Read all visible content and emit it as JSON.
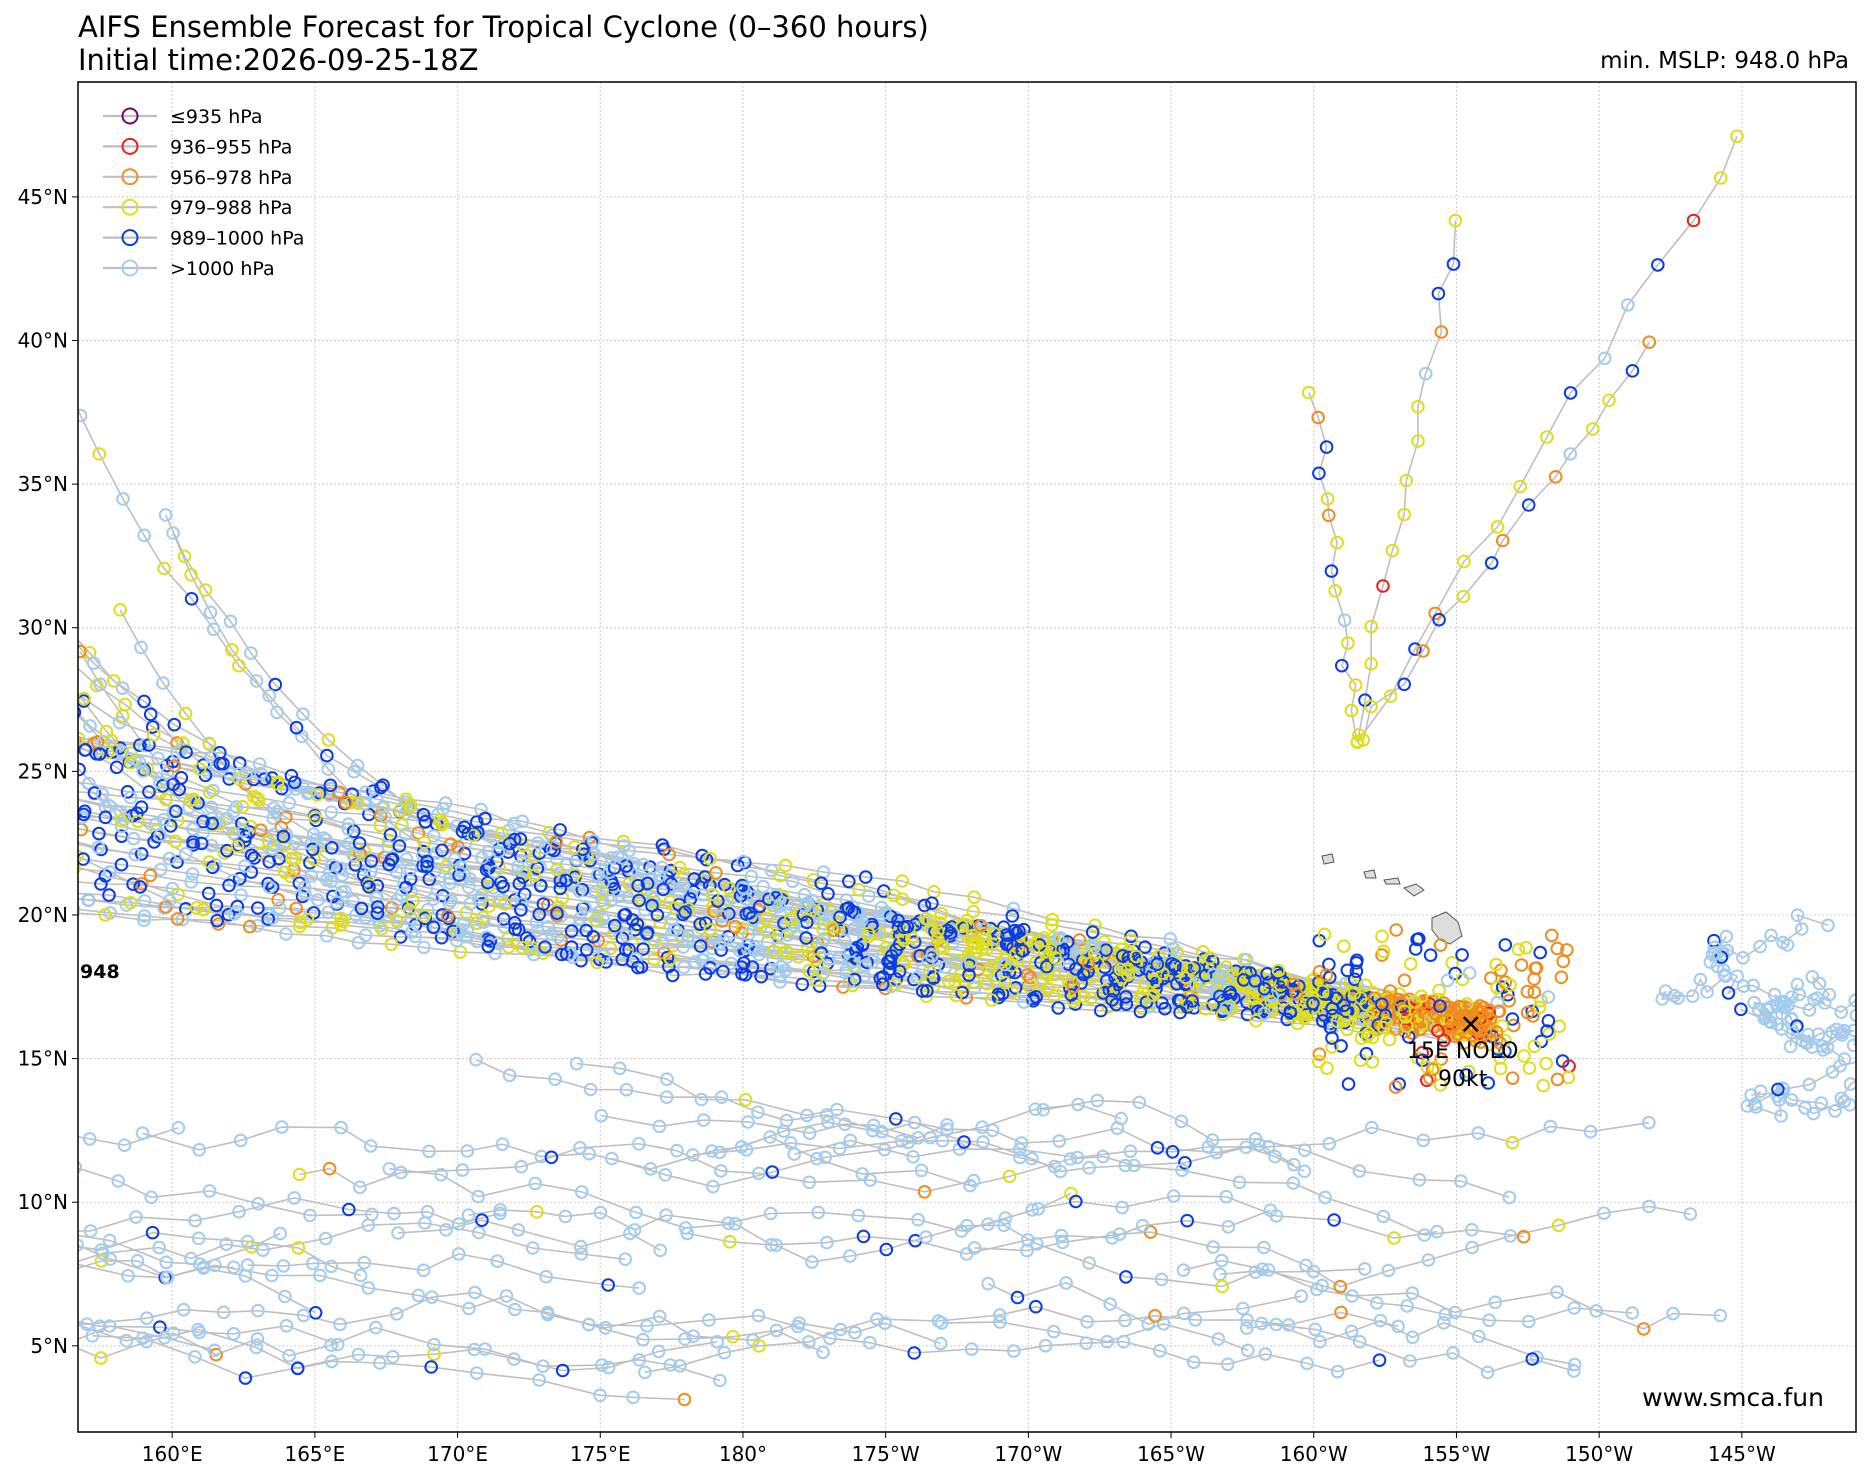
{
  "header": {
    "title": "AIFS Ensemble Forecast for Tropical Cyclone (0–360 hours)",
    "subtitle": "Initial time:2026-09-25-18Z",
    "min_mslp": "min. MSLP: 948.0 hPa"
  },
  "legend": {
    "items": [
      {
        "label": "≤935 hPa",
        "color": "#800060"
      },
      {
        "label": "936–955 hPa",
        "color": "#e8201a"
      },
      {
        "label": "956–978 hPa",
        "color": "#f08c1e"
      },
      {
        "label": "979–988 hPa",
        "color": "#dede1a"
      },
      {
        "label": "989–1000 hPa",
        "color": "#0a3ce6"
      },
      {
        "label": ">1000 hPa",
        "color": "#a0ccf2"
      }
    ]
  },
  "axes": {
    "lat_labels": [
      "5°N",
      "10°N",
      "15°N",
      "20°N",
      "25°N",
      "30°N",
      "35°N",
      "40°N",
      "45°N"
    ],
    "lat_values": [
      5,
      10,
      15,
      20,
      25,
      30,
      35,
      40,
      45
    ],
    "lon_labels": [
      "160°E",
      "165°E",
      "170°E",
      "175°E",
      "180°",
      "175°W",
      "170°W",
      "165°W",
      "160°W",
      "155°W",
      "150°W",
      "145°W"
    ],
    "lon_values": [
      160,
      165,
      170,
      175,
      180,
      185,
      190,
      195,
      200,
      205,
      210,
      215
    ],
    "extent": {
      "lon_min": 156.7,
      "lon_max": 219.0,
      "lat_min": 2.0,
      "lat_max": 49.0
    }
  },
  "storm": {
    "name": "15E NOLO",
    "intensity": "90kt",
    "lon": 205.5,
    "lat": 16.2
  },
  "left_min_label": "948",
  "watermark": "www.smca.fun",
  "colors": {
    "track_line": "#bfbfbf",
    "grid": "#cccccc"
  }
}
